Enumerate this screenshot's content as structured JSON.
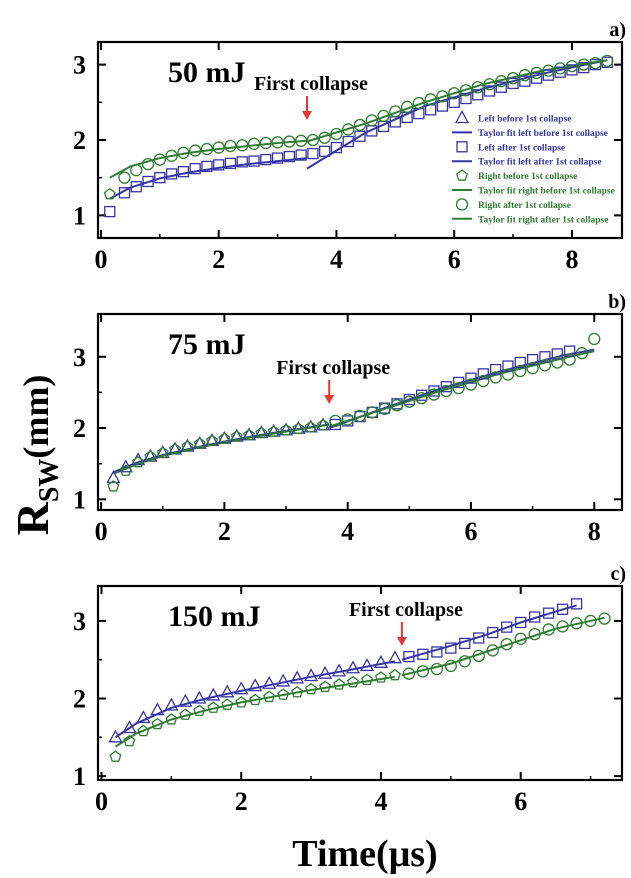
{
  "figure": {
    "ylabel_main": "R",
    "ylabel_sub": "SW",
    "ylabel_unit": "(mm)",
    "xlabel": "Time(μs)"
  },
  "colors": {
    "left": "#3535a8",
    "right": "#2e7d32",
    "arrow": "#e53935",
    "axis": "#000000"
  },
  "legend": {
    "items": [
      {
        "label": "Left before 1st collapse",
        "marker": "triangle",
        "color_key": "left"
      },
      {
        "label": "Taylor fit left before 1st collapse",
        "marker": "line",
        "color_key": "left"
      },
      {
        "label": "Left after 1st collapse",
        "marker": "square",
        "color_key": "left"
      },
      {
        "label": "Taylor fit left after 1st collapse",
        "marker": "line",
        "color_key": "left"
      },
      {
        "label": "Right before 1st collapse",
        "marker": "pentagon",
        "color_key": "right"
      },
      {
        "label": "Taylor fit right before 1st collapse",
        "marker": "line",
        "color_key": "right"
      },
      {
        "label": "Right after 1st collapse",
        "marker": "circle",
        "color_key": "right"
      },
      {
        "label": "Taylor fit right after 1st collapse",
        "marker": "line",
        "color_key": "right"
      }
    ]
  },
  "chart_data": [
    {
      "type": "scatter",
      "panel": "a)",
      "title": "50 mJ",
      "annotation": "First collapse",
      "collapse_x": 3.5,
      "xlim": [
        -0.05,
        8.85
      ],
      "ylim": [
        0.7,
        3.3
      ],
      "xticks": [
        0,
        2,
        4,
        6,
        8
      ],
      "yticks": [
        1,
        2,
        3
      ],
      "legend": true,
      "series": [
        {
          "name": "Left before 1st collapse",
          "marker": "triangle",
          "color_key": "left",
          "x": [],
          "y": []
        },
        {
          "name": "Left after 1st collapse",
          "marker": "square",
          "color_key": "left",
          "x": [
            0.15,
            0.4,
            0.6,
            0.8,
            1.0,
            1.2,
            1.4,
            1.6,
            1.8,
            2.0,
            2.2,
            2.4,
            2.6,
            2.8,
            3.0,
            3.2,
            3.4,
            3.6,
            3.8,
            4.0,
            4.2,
            4.4,
            4.6,
            4.8,
            5.0,
            5.2,
            5.4,
            5.6,
            5.8,
            6.0,
            6.2,
            6.4,
            6.6,
            6.8,
            7.0,
            7.2,
            7.4,
            7.6,
            7.8,
            8.0,
            8.2,
            8.4,
            8.6
          ],
          "y": [
            1.05,
            1.3,
            1.38,
            1.45,
            1.5,
            1.55,
            1.58,
            1.62,
            1.65,
            1.67,
            1.69,
            1.71,
            1.72,
            1.74,
            1.76,
            1.78,
            1.8,
            1.82,
            1.85,
            1.9,
            1.98,
            2.05,
            2.12,
            2.18,
            2.24,
            2.3,
            2.35,
            2.4,
            2.45,
            2.5,
            2.55,
            2.6,
            2.65,
            2.7,
            2.75,
            2.78,
            2.82,
            2.86,
            2.9,
            2.93,
            2.96,
            3.0,
            3.03
          ]
        },
        {
          "name": "Right before 1st collapse",
          "marker": "pentagon",
          "color_key": "right",
          "x": [
            0.15
          ],
          "y": [
            1.28
          ]
        },
        {
          "name": "Right after 1st collapse",
          "marker": "circle",
          "color_key": "right",
          "x": [
            0.4,
            0.6,
            0.8,
            1.0,
            1.2,
            1.4,
            1.6,
            1.8,
            2.0,
            2.2,
            2.4,
            2.6,
            2.8,
            3.0,
            3.2,
            3.4,
            3.6,
            3.8,
            4.0,
            4.2,
            4.4,
            4.6,
            4.8,
            5.0,
            5.2,
            5.4,
            5.6,
            5.8,
            6.0,
            6.2,
            6.4,
            6.6,
            6.8,
            7.0,
            7.2,
            7.4,
            7.6,
            7.8,
            8.0,
            8.2,
            8.4,
            8.6
          ],
          "y": [
            1.5,
            1.6,
            1.68,
            1.74,
            1.79,
            1.83,
            1.86,
            1.88,
            1.9,
            1.92,
            1.93,
            1.95,
            1.96,
            1.97,
            1.98,
            1.99,
            2.0,
            2.03,
            2.08,
            2.14,
            2.2,
            2.26,
            2.32,
            2.38,
            2.44,
            2.49,
            2.54,
            2.58,
            2.62,
            2.66,
            2.7,
            2.74,
            2.78,
            2.82,
            2.86,
            2.89,
            2.92,
            2.95,
            2.98,
            3.0,
            3.02,
            3.05
          ]
        }
      ],
      "fits": [
        {
          "name": "Taylor fit left before 1st collapse",
          "color_key": "left",
          "x": [
            0.15,
            0.5,
            1.0,
            1.5,
            2.0,
            2.5,
            3.0,
            3.5
          ],
          "y": [
            1.22,
            1.37,
            1.49,
            1.57,
            1.63,
            1.68,
            1.72,
            1.76
          ]
        },
        {
          "name": "Taylor fit left after 1st collapse",
          "color_key": "left",
          "x": [
            3.5,
            4.5,
            5.5,
            6.5,
            7.5,
            8.6
          ],
          "y": [
            1.62,
            2.1,
            2.45,
            2.68,
            2.88,
            3.06
          ]
        },
        {
          "name": "Taylor fit right before 1st collapse",
          "color_key": "right",
          "x": [
            0.15,
            0.5,
            1.0,
            1.5,
            2.0,
            2.5,
            3.0,
            3.5
          ],
          "y": [
            1.5,
            1.65,
            1.76,
            1.83,
            1.88,
            1.92,
            1.96,
            1.99
          ]
        },
        {
          "name": "Taylor fit right after 1st collapse",
          "color_key": "right",
          "x": [
            3.5,
            4.5,
            5.5,
            6.5,
            7.5,
            8.6
          ],
          "y": [
            1.98,
            2.22,
            2.5,
            2.74,
            2.92,
            3.06
          ]
        }
      ]
    },
    {
      "type": "scatter",
      "panel": "b)",
      "title": "75 mJ",
      "annotation": "First collapse",
      "collapse_x": 3.7,
      "xlim": [
        -0.05,
        8.45
      ],
      "ylim": [
        0.85,
        3.6
      ],
      "xticks": [
        0,
        2,
        4,
        6,
        8
      ],
      "yticks": [
        1,
        2,
        3
      ],
      "legend": false,
      "series": [
        {
          "name": "Left before 1st collapse",
          "marker": "triangle",
          "color_key": "left",
          "x": [
            0.2,
            0.4,
            0.6,
            0.8,
            1.0,
            1.2,
            1.4,
            1.6,
            1.8,
            2.0,
            2.2,
            2.4,
            2.6,
            2.8,
            3.0,
            3.2,
            3.4,
            3.6
          ],
          "y": [
            1.3,
            1.45,
            1.55,
            1.6,
            1.65,
            1.7,
            1.74,
            1.78,
            1.82,
            1.85,
            1.88,
            1.9,
            1.93,
            1.95,
            1.97,
            1.99,
            2.01,
            2.04
          ]
        },
        {
          "name": "Left after 1st collapse",
          "marker": "square",
          "color_key": "left",
          "x": [
            3.8,
            4.0,
            4.2,
            4.4,
            4.6,
            4.8,
            5.0,
            5.2,
            5.4,
            5.6,
            5.8,
            6.0,
            6.2,
            6.4,
            6.6,
            6.8,
            7.0,
            7.2,
            7.4,
            7.6
          ],
          "y": [
            2.05,
            2.1,
            2.16,
            2.22,
            2.28,
            2.34,
            2.4,
            2.46,
            2.52,
            2.58,
            2.64,
            2.7,
            2.76,
            2.82,
            2.87,
            2.92,
            2.96,
            3.0,
            3.04,
            3.08
          ]
        },
        {
          "name": "Right before 1st collapse",
          "marker": "pentagon",
          "color_key": "right",
          "x": [
            0.2,
            0.4,
            0.6,
            0.8,
            1.0,
            1.2,
            1.4,
            1.6,
            1.8,
            2.0,
            2.2,
            2.4,
            2.6,
            2.8,
            3.0,
            3.2,
            3.4,
            3.6
          ],
          "y": [
            1.18,
            1.4,
            1.52,
            1.6,
            1.65,
            1.7,
            1.74,
            1.78,
            1.82,
            1.85,
            1.88,
            1.9,
            1.93,
            1.95,
            1.97,
            1.99,
            2.01,
            2.04
          ]
        },
        {
          "name": "Right after 1st collapse",
          "marker": "circle",
          "color_key": "right",
          "x": [
            3.8,
            4.0,
            4.2,
            4.4,
            4.6,
            4.8,
            5.0,
            5.2,
            5.4,
            5.6,
            5.8,
            6.0,
            6.2,
            6.4,
            6.6,
            6.8,
            7.0,
            7.2,
            7.4,
            7.6,
            7.8,
            8.0
          ],
          "y": [
            2.1,
            2.12,
            2.17,
            2.22,
            2.27,
            2.32,
            2.37,
            2.42,
            2.47,
            2.52,
            2.56,
            2.61,
            2.66,
            2.71,
            2.75,
            2.8,
            2.84,
            2.88,
            2.92,
            2.96,
            3.05,
            3.25
          ]
        }
      ],
      "fits": [
        {
          "name": "Taylor fit left before 1st collapse",
          "color_key": "left",
          "x": [
            0.2,
            0.6,
            1.0,
            1.5,
            2.0,
            2.5,
            3.0,
            3.7
          ],
          "y": [
            1.38,
            1.52,
            1.62,
            1.72,
            1.81,
            1.89,
            1.96,
            2.05
          ]
        },
        {
          "name": "Taylor fit left after 1st collapse",
          "color_key": "left",
          "x": [
            3.7,
            4.5,
            5.5,
            6.5,
            7.5,
            8.0
          ],
          "y": [
            2.0,
            2.25,
            2.55,
            2.8,
            3.02,
            3.1
          ]
        },
        {
          "name": "Taylor fit right before 1st collapse",
          "color_key": "right",
          "x": [
            0.2,
            0.6,
            1.0,
            1.5,
            2.0,
            2.5,
            3.0,
            3.7
          ],
          "y": [
            1.36,
            1.5,
            1.61,
            1.71,
            1.8,
            1.88,
            1.95,
            2.05
          ]
        },
        {
          "name": "Taylor fit right after 1st collapse",
          "color_key": "right",
          "x": [
            3.7,
            4.5,
            5.5,
            6.5,
            7.5,
            8.0
          ],
          "y": [
            2.02,
            2.24,
            2.52,
            2.77,
            2.98,
            3.08
          ]
        }
      ]
    },
    {
      "type": "scatter",
      "panel": "c)",
      "title": "150 mJ",
      "annotation": "First collapse",
      "collapse_x": 4.3,
      "xlim": [
        -0.05,
        7.45
      ],
      "ylim": [
        0.95,
        3.45
      ],
      "xticks": [
        0,
        2,
        4,
        6
      ],
      "yticks": [
        1,
        2,
        3
      ],
      "legend": false,
      "series": [
        {
          "name": "Left before 1st collapse",
          "marker": "triangle",
          "color_key": "left",
          "x": [
            0.2,
            0.4,
            0.6,
            0.8,
            1.0,
            1.2,
            1.4,
            1.6,
            1.8,
            2.0,
            2.2,
            2.4,
            2.6,
            2.8,
            3.0,
            3.2,
            3.4,
            3.6,
            3.8,
            4.0,
            4.2
          ],
          "y": [
            1.5,
            1.62,
            1.75,
            1.85,
            1.91,
            1.96,
            2.0,
            2.04,
            2.08,
            2.12,
            2.16,
            2.19,
            2.22,
            2.26,
            2.29,
            2.32,
            2.35,
            2.39,
            2.42,
            2.46,
            2.52
          ]
        },
        {
          "name": "Left after 1st collapse",
          "marker": "square",
          "color_key": "left",
          "x": [
            4.4,
            4.6,
            4.8,
            5.0,
            5.2,
            5.4,
            5.6,
            5.8,
            6.0,
            6.2,
            6.4,
            6.6,
            6.8
          ],
          "y": [
            2.54,
            2.57,
            2.6,
            2.65,
            2.71,
            2.78,
            2.85,
            2.92,
            2.98,
            3.05,
            3.1,
            3.15,
            3.22
          ]
        },
        {
          "name": "Right before 1st collapse",
          "marker": "pentagon",
          "color_key": "right",
          "x": [
            0.2,
            0.4,
            0.6,
            0.8,
            1.0,
            1.2,
            1.4,
            1.6,
            1.8,
            2.0,
            2.2,
            2.4,
            2.6,
            2.8,
            3.0,
            3.2,
            3.4,
            3.6,
            3.8,
            4.0,
            4.2
          ],
          "y": [
            1.25,
            1.45,
            1.58,
            1.67,
            1.73,
            1.79,
            1.84,
            1.88,
            1.92,
            1.95,
            1.98,
            2.02,
            2.05,
            2.08,
            2.12,
            2.15,
            2.18,
            2.21,
            2.24,
            2.27,
            2.3
          ]
        },
        {
          "name": "Right after 1st collapse",
          "marker": "circle",
          "color_key": "right",
          "x": [
            4.4,
            4.6,
            4.8,
            5.0,
            5.2,
            5.4,
            5.6,
            5.8,
            6.0,
            6.2,
            6.4,
            6.6,
            6.8,
            7.0,
            7.2
          ],
          "y": [
            2.32,
            2.35,
            2.38,
            2.42,
            2.48,
            2.55,
            2.62,
            2.7,
            2.77,
            2.83,
            2.89,
            2.93,
            2.97,
            3.0,
            3.03
          ]
        }
      ],
      "fits": [
        {
          "name": "Taylor fit left before 1st collapse",
          "color_key": "left",
          "x": [
            0.2,
            0.5,
            1.0,
            1.5,
            2.0,
            2.5,
            3.0,
            3.5,
            4.2
          ],
          "y": [
            1.5,
            1.68,
            1.88,
            2.0,
            2.1,
            2.19,
            2.28,
            2.36,
            2.48
          ]
        },
        {
          "name": "Taylor fit left after 1st collapse",
          "color_key": "left",
          "x": [
            4.3,
            5.0,
            5.5,
            6.0,
            6.5,
            6.8
          ],
          "y": [
            2.5,
            2.68,
            2.82,
            2.98,
            3.12,
            3.2
          ]
        },
        {
          "name": "Taylor fit right before 1st collapse",
          "color_key": "right",
          "x": [
            0.2,
            0.5,
            1.0,
            1.5,
            2.0,
            2.5,
            3.0,
            3.5,
            4.2
          ],
          "y": [
            1.38,
            1.55,
            1.73,
            1.85,
            1.95,
            2.03,
            2.11,
            2.18,
            2.28
          ]
        },
        {
          "name": "Taylor fit right after 1st collapse",
          "color_key": "right",
          "x": [
            4.3,
            5.0,
            5.5,
            6.0,
            6.5,
            7.2
          ],
          "y": [
            2.3,
            2.45,
            2.6,
            2.75,
            2.9,
            3.04
          ]
        }
      ]
    }
  ]
}
